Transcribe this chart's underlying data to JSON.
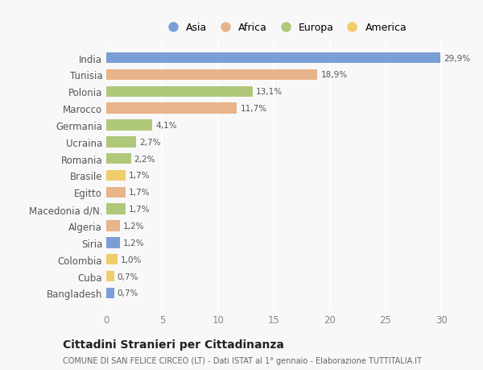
{
  "categories": [
    "India",
    "Tunisia",
    "Polonia",
    "Marocco",
    "Germania",
    "Ucraina",
    "Romania",
    "Brasile",
    "Egitto",
    "Macedonia d/N.",
    "Algeria",
    "Siria",
    "Colombia",
    "Cuba",
    "Bangladesh"
  ],
  "values": [
    29.9,
    18.9,
    13.1,
    11.7,
    4.1,
    2.7,
    2.2,
    1.7,
    1.7,
    1.7,
    1.2,
    1.2,
    1.0,
    0.7,
    0.7
  ],
  "labels": [
    "29,9%",
    "18,9%",
    "13,1%",
    "11,7%",
    "4,1%",
    "2,7%",
    "2,2%",
    "1,7%",
    "1,7%",
    "1,7%",
    "1,2%",
    "1,2%",
    "1,0%",
    "0,7%",
    "0,7%"
  ],
  "continents": [
    "Asia",
    "Africa",
    "Europa",
    "Africa",
    "Europa",
    "Europa",
    "Europa",
    "America",
    "Africa",
    "Europa",
    "Africa",
    "Asia",
    "America",
    "America",
    "Asia"
  ],
  "colors": {
    "Asia": "#7b9fd4",
    "Africa": "#e8b48a",
    "Europa": "#b0c87a",
    "America": "#f0cc6a"
  },
  "xlim": [
    0,
    32
  ],
  "xticks": [
    0,
    5,
    10,
    15,
    20,
    25,
    30
  ],
  "title": "Cittadini Stranieri per Cittadinanza",
  "subtitle": "COMUNE DI SAN FELICE CIRCEO (LT) - Dati ISTAT al 1° gennaio - Elaborazione TUTTITALIA.IT",
  "background_color": "#f8f8f8",
  "bar_height": 0.65,
  "figsize": [
    6.0,
    4.6
  ],
  "dpi": 100
}
